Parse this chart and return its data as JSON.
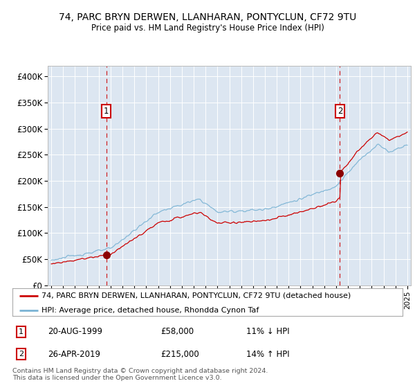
{
  "title": "74, PARC BRYN DERWEN, LLANHARAN, PONTYCLUN, CF72 9TU",
  "subtitle": "Price paid vs. HM Land Registry's House Price Index (HPI)",
  "ylim": [
    0,
    420000
  ],
  "yticks": [
    0,
    50000,
    100000,
    150000,
    200000,
    250000,
    300000,
    350000,
    400000
  ],
  "ytick_labels": [
    "£0",
    "£50K",
    "£100K",
    "£150K",
    "£200K",
    "£250K",
    "£300K",
    "£350K",
    "£400K"
  ],
  "plot_bg_color": "#dce6f1",
  "hpi_color": "#7ab3d4",
  "price_color": "#cc0000",
  "marker_color": "#8b0000",
  "annotation_box_color": "#cc0000",
  "legend_label_price": "74, PARC BRYN DERWEN, LLANHARAN, PONTYCLUN, CF72 9TU (detached house)",
  "legend_label_hpi": "HPI: Average price, detached house, Rhondda Cynon Taf",
  "note1_date": "20-AUG-1999",
  "note1_price": "£58,000",
  "note1_hpi": "11% ↓ HPI",
  "note2_date": "26-APR-2019",
  "note2_price": "£215,000",
  "note2_hpi": "14% ↑ HPI",
  "footer": "Contains HM Land Registry data © Crown copyright and database right 2024.\nThis data is licensed under the Open Government Licence v3.0.",
  "transaction1_year": 1999.64,
  "transaction1_price": 58000,
  "transaction2_year": 2019.32,
  "transaction2_price": 215000
}
